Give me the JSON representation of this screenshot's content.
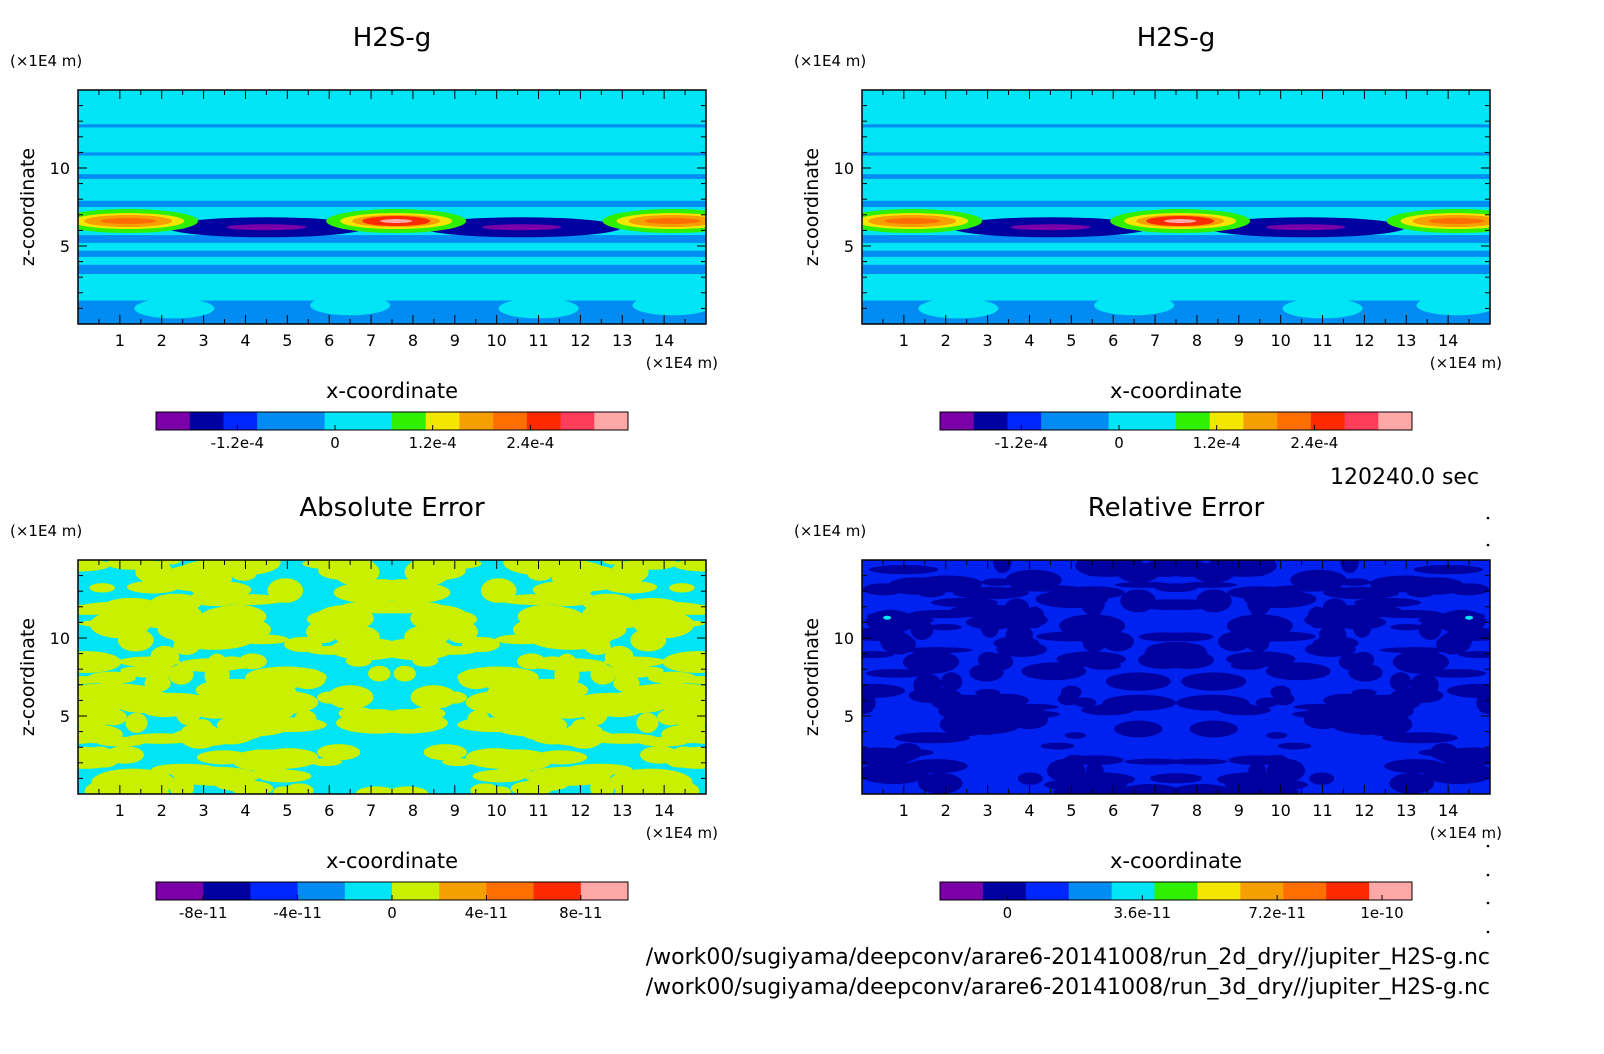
{
  "colors": {
    "purple": "#7b00a8",
    "navy": "#0000a0",
    "blue": "#0026ff",
    "azure": "#008cf2",
    "cyan": "#00e5f5",
    "green": "#2ef000",
    "yellow": "#f5e600",
    "lime": "#c8f000",
    "orange": "#f5a000",
    "darkorange": "#ff6e00",
    "red": "#ff2a00",
    "pink": "#ff3c5a",
    "lightpink": "#ffa8a8",
    "plotblue": "#0022f0"
  },
  "time_label": "120240.0 sec",
  "footer": [
    "/work00/sugiyama/deepconv/arare6-20141008/run_2d_dry//jupiter_H2S-g.nc",
    "/work00/sugiyama/deepconv/arare6-20141008/run_3d_dry//jupiter_H2S-g.nc"
  ],
  "chart_data": [
    {
      "type": "heatmap",
      "title": "H2S-g",
      "xlabel": "x-coordinate",
      "ylabel": "z-coordinate",
      "x_unit": "(×1E4 m)",
      "y_unit": "(×1E4 m)",
      "xlim": [
        0,
        15
      ],
      "ylim": [
        0,
        15
      ],
      "x_ticks": [
        1,
        2,
        3,
        4,
        5,
        6,
        7,
        8,
        9,
        10,
        11,
        12,
        13,
        14
      ],
      "y_ticks": [
        5,
        10
      ],
      "colorbar": {
        "colors": [
          "purple",
          "navy",
          "blue",
          "azure",
          "azure",
          "cyan",
          "cyan",
          "green",
          "yellow",
          "orange",
          "darkorange",
          "red",
          "pink",
          "lightpink"
        ],
        "tick_labels": [
          {
            "label": "-1.2e-4",
            "value": -0.00012
          },
          {
            "label": "0",
            "value": 0
          },
          {
            "label": "1.2e-4",
            "value": 0.00012
          },
          {
            "label": "2.4e-4",
            "value": 0.00024
          }
        ],
        "range": [
          -0.00022,
          0.00036
        ]
      },
      "features": {
        "background": "cyan",
        "bands": [
          {
            "z": [
              0.0,
              1.5
            ],
            "color": "azure"
          },
          {
            "z": [
              3.2,
              3.8
            ],
            "color": "azure"
          },
          {
            "z": [
              4.3,
              4.7
            ],
            "color": "azure"
          },
          {
            "z": [
              5.2,
              5.7
            ],
            "color": "azure"
          },
          {
            "z": [
              7.5,
              7.9
            ],
            "color": "azure"
          },
          {
            "z": [
              9.3,
              9.6
            ],
            "color": "azure"
          },
          {
            "z": [
              10.8,
              11.0
            ],
            "color": "azure"
          },
          {
            "z": [
              12.6,
              12.8
            ],
            "color": "azure"
          }
        ],
        "positive_cores": [
          {
            "x": 1.2,
            "z": 6.6,
            "value": 0.00026
          },
          {
            "x": 7.6,
            "z": 6.6,
            "value": 0.00034
          },
          {
            "x": 14.2,
            "z": 6.6,
            "value": 0.00026
          }
        ],
        "negative_cores": [
          {
            "x": 4.5,
            "z": 6.2,
            "value": -0.0002
          },
          {
            "x": 10.6,
            "z": 6.2,
            "value": -0.0002
          }
        ]
      }
    },
    {
      "type": "heatmap",
      "title": "H2S-g",
      "xlabel": "x-coordinate",
      "ylabel": "z-coordinate",
      "x_unit": "(×1E4 m)",
      "y_unit": "(×1E4 m)",
      "xlim": [
        0,
        15
      ],
      "ylim": [
        0,
        15
      ],
      "x_ticks": [
        1,
        2,
        3,
        4,
        5,
        6,
        7,
        8,
        9,
        10,
        11,
        12,
        13,
        14
      ],
      "y_ticks": [
        5,
        10
      ],
      "colorbar": {
        "colors": [
          "purple",
          "navy",
          "blue",
          "azure",
          "azure",
          "cyan",
          "cyan",
          "green",
          "yellow",
          "orange",
          "darkorange",
          "red",
          "pink",
          "lightpink"
        ],
        "tick_labels": [
          {
            "label": "-1.2e-4",
            "value": -0.00012
          },
          {
            "label": "0",
            "value": 0
          },
          {
            "label": "1.2e-4",
            "value": 0.00012
          },
          {
            "label": "2.4e-4",
            "value": 0.00024
          }
        ],
        "range": [
          -0.00022,
          0.00036
        ]
      },
      "features": {
        "background": "cyan",
        "bands": [
          {
            "z": [
              0.0,
              1.5
            ],
            "color": "azure"
          },
          {
            "z": [
              3.2,
              3.8
            ],
            "color": "azure"
          },
          {
            "z": [
              4.3,
              4.7
            ],
            "color": "azure"
          },
          {
            "z": [
              5.2,
              5.7
            ],
            "color": "azure"
          },
          {
            "z": [
              7.5,
              7.9
            ],
            "color": "azure"
          },
          {
            "z": [
              9.3,
              9.6
            ],
            "color": "azure"
          },
          {
            "z": [
              10.8,
              11.0
            ],
            "color": "azure"
          },
          {
            "z": [
              12.6,
              12.8
            ],
            "color": "azure"
          }
        ],
        "positive_cores": [
          {
            "x": 1.2,
            "z": 6.6,
            "value": 0.00026
          },
          {
            "x": 7.6,
            "z": 6.6,
            "value": 0.00034
          },
          {
            "x": 14.2,
            "z": 6.6,
            "value": 0.00026
          }
        ],
        "negative_cores": [
          {
            "x": 4.5,
            "z": 6.2,
            "value": -0.0002
          },
          {
            "x": 10.6,
            "z": 6.2,
            "value": -0.0002
          }
        ]
      }
    },
    {
      "type": "heatmap",
      "title": "Absolute Error",
      "xlabel": "x-coordinate",
      "ylabel": "z-coordinate",
      "x_unit": "(×1E4 m)",
      "y_unit": "(×1E4 m)",
      "xlim": [
        0,
        15
      ],
      "ylim": [
        0,
        15
      ],
      "x_ticks": [
        1,
        2,
        3,
        4,
        5,
        6,
        7,
        8,
        9,
        10,
        11,
        12,
        13,
        14
      ],
      "y_ticks": [
        5,
        10
      ],
      "colorbar": {
        "colors": [
          "purple",
          "navy",
          "blue",
          "azure",
          "cyan",
          "lime",
          "orange",
          "darkorange",
          "red",
          "lightpink"
        ],
        "tick_labels": [
          {
            "label": "-8e-11",
            "value": -8e-11
          },
          {
            "label": "-4e-11",
            "value": -4e-11
          },
          {
            "label": "0",
            "value": 0
          },
          {
            "label": "4e-11",
            "value": 4e-11
          },
          {
            "label": "8e-11",
            "value": 8e-11
          }
        ],
        "range": [
          -1e-10,
          1e-10
        ]
      },
      "features": {
        "background": "cyan",
        "patch_color": "lime",
        "patch_value": 1e-11,
        "background_value": -1e-11
      }
    },
    {
      "type": "heatmap",
      "title": "Relative Error",
      "xlabel": "x-coordinate",
      "ylabel": "z-coordinate",
      "x_unit": "(×1E4 m)",
      "y_unit": "(×1E4 m)",
      "xlim": [
        0,
        15
      ],
      "ylim": [
        0,
        15
      ],
      "x_ticks": [
        1,
        2,
        3,
        4,
        5,
        6,
        7,
        8,
        9,
        10,
        11,
        12,
        13,
        14
      ],
      "y_ticks": [
        5,
        10
      ],
      "colorbar": {
        "colors": [
          "purple",
          "navy",
          "blue",
          "azure",
          "cyan",
          "green",
          "yellow",
          "orange",
          "darkorange",
          "red",
          "lightpink"
        ],
        "tick_labels": [
          {
            "label": "0",
            "value": 0
          },
          {
            "label": "3.6e-11",
            "value": 3.6e-11
          },
          {
            "label": "7.2e-11",
            "value": 7.2e-11
          },
          {
            "label": "1e-10",
            "value": 1e-10
          }
        ],
        "range": [
          -1.8e-11,
          1.08e-10
        ]
      },
      "features": {
        "background": "plotblue",
        "patch_color": "navy",
        "spots": [
          {
            "x": 0.6,
            "z": 11.3,
            "color": "cyan"
          },
          {
            "x": 14.5,
            "z": 11.3,
            "color": "cyan"
          }
        ]
      }
    }
  ]
}
